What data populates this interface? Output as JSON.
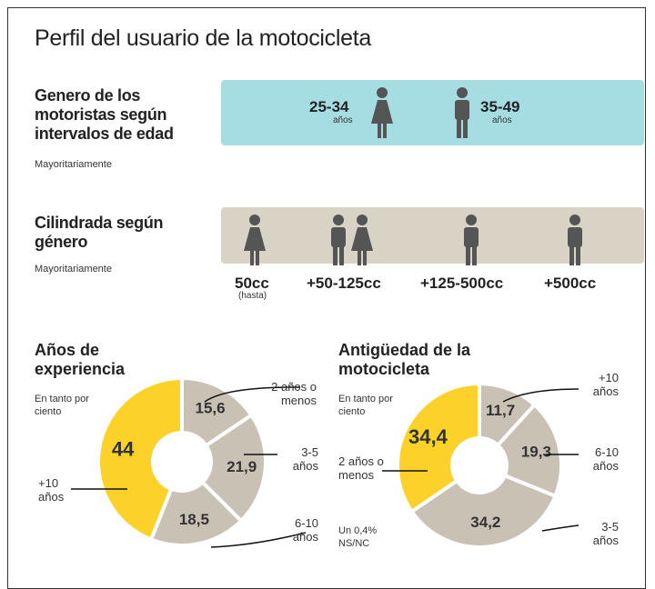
{
  "title": "Perfil del usuario de la motocicleta",
  "sections": [
    {
      "title": "Genero de los motoristas según intervalos de edad",
      "note": "Mayoritariamente",
      "groups": [
        {
          "label": "25-34",
          "sublabel": "años"
        },
        {
          "label": "35-49",
          "sublabel": "años"
        }
      ]
    },
    {
      "title": "Cilindrada según género",
      "note": "Mayoritariamente",
      "groups": [
        {
          "label": "50cc",
          "sublabel": "(hasta)"
        },
        {
          "label": "+50-125cc"
        },
        {
          "label": "+125-500cc"
        },
        {
          "label": "+500cc"
        }
      ]
    }
  ],
  "chart_data": [
    {
      "type": "pie",
      "title": "Años de experiencia",
      "subtitle": "En tanto por ciento",
      "categories": [
        "2 años o menos",
        "3-5 años",
        "6-10 años",
        "+10 años"
      ],
      "values": [
        15.6,
        21.9,
        18.5,
        44
      ],
      "value_labels": [
        "15,6",
        "21,9",
        "18,5",
        "44"
      ],
      "colors": [
        "#c9c1b4",
        "#c9c1b4",
        "#c9c1b4",
        "#fcd22a"
      ]
    },
    {
      "type": "pie",
      "title": "Antigüedad de la motocicleta",
      "subtitle": "En tanto por ciento",
      "annotation": "Un 0,4% NS/NC",
      "categories": [
        "+10 años",
        "6-10 años",
        "3-5 años",
        "2 años o menos"
      ],
      "values": [
        11.7,
        19.3,
        34.2,
        34.4
      ],
      "value_labels": [
        "11,7",
        "19,3",
        "34,2",
        "34,4"
      ],
      "colors": [
        "#c9c1b4",
        "#c9c1b4",
        "#c9c1b4",
        "#fcd22a"
      ]
    }
  ]
}
